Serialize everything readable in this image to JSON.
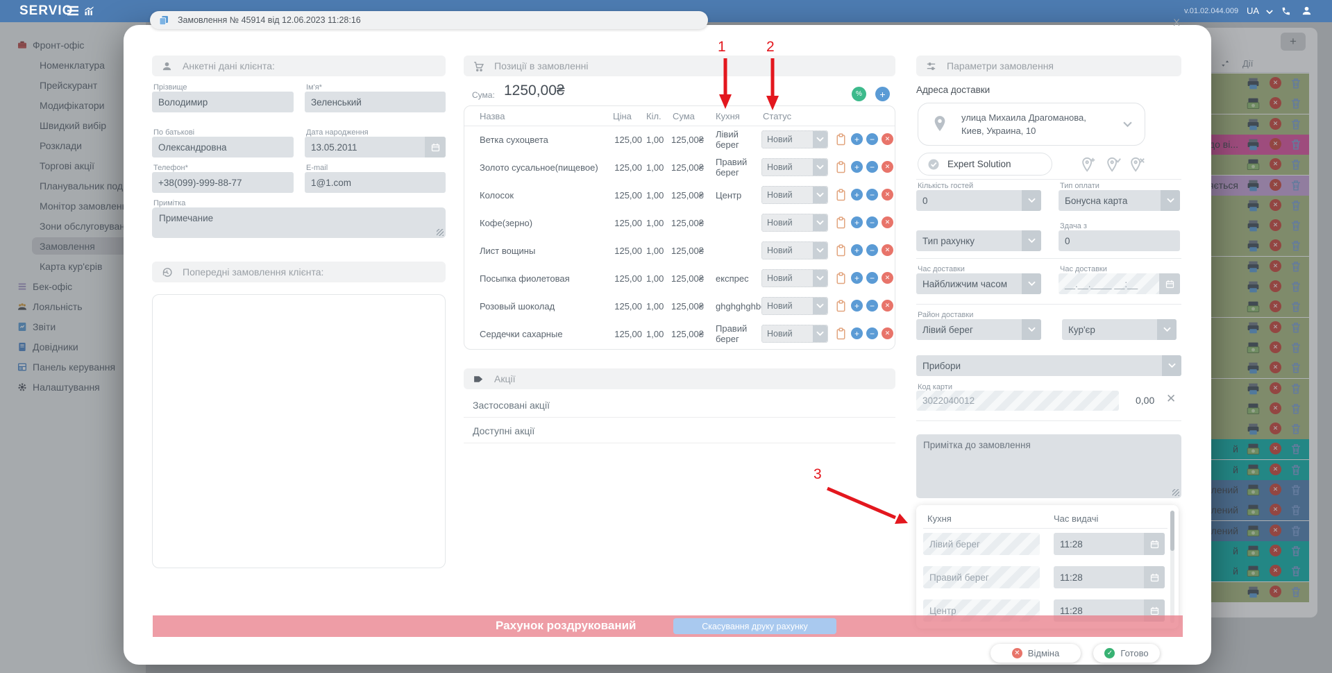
{
  "colors": {
    "topbar": "#4d7cb2",
    "accent-blue": "#5b9bd5",
    "accent-green": "#3dba8c",
    "accent-red": "#e8746a",
    "annotation-red": "#e3171e",
    "pink-banner": "rgba(232,119,132,0.72)",
    "row-green": "#a9ba7e",
    "row-pink": "#df4f9d",
    "row-purple": "#c9a2d8",
    "row-teal": "#0cb4ab",
    "row-blue": "#4f80b2"
  },
  "topbar": {
    "logo": "SERVIO",
    "version": "v.01.02.044.009",
    "lang": "UA"
  },
  "sidebar": {
    "items": [
      {
        "label": "Фронт-офіс",
        "icon": "briefcase-icon",
        "level": 0
      },
      {
        "label": "Номенклатура",
        "level": 1
      },
      {
        "label": "Прейскурант",
        "level": 1
      },
      {
        "label": "Модифікатори",
        "level": 1
      },
      {
        "label": "Швидкий вибір",
        "level": 1
      },
      {
        "label": "Розклади",
        "level": 1
      },
      {
        "label": "Торгові акції",
        "level": 1
      },
      {
        "label": "Планувальник подій",
        "level": 1
      },
      {
        "label": "Монітор замовлень",
        "level": 1
      },
      {
        "label": "Зони обслуговування",
        "level": 1
      },
      {
        "label": "Замовлення",
        "level": 1,
        "selected": true
      },
      {
        "label": "Карта кур'єрів",
        "level": 1
      },
      {
        "label": "Бек-офіс",
        "icon": "menu-lines-icon",
        "level": 0
      },
      {
        "label": "Лояльність",
        "icon": "people-icon",
        "level": 0
      },
      {
        "label": "Звіти",
        "icon": "report-icon",
        "level": 0
      },
      {
        "label": "Довідники",
        "icon": "book-icon",
        "level": 0
      },
      {
        "label": "Панель керування",
        "icon": "dashboard-icon",
        "level": 0
      },
      {
        "label": "Налаштування",
        "icon": "gear-icon",
        "level": 0
      }
    ]
  },
  "background_table": {
    "add_button": "+",
    "actions_header": "Дії",
    "rows": [
      {
        "color": "green",
        "icon": "printer-icon",
        "label": ""
      },
      {
        "color": "green",
        "icon": "money-icon",
        "label": ""
      },
      {
        "color": "green",
        "icon": "printer-icon",
        "label": ""
      },
      {
        "color": "pink",
        "icon": "printer-icon",
        "label": "й до ві..."
      },
      {
        "color": "green",
        "icon": "money-icon",
        "label": ""
      },
      {
        "color": "purple",
        "icon": "printer-icon",
        "label": "ляється"
      },
      {
        "color": "green",
        "icon": "printer-icon",
        "label": ""
      },
      {
        "color": "green",
        "icon": "printer-icon",
        "label": ""
      },
      {
        "color": "green",
        "icon": "printer-icon",
        "label": ""
      },
      {
        "color": "green",
        "icon": "printer-icon",
        "label": ""
      },
      {
        "color": "green",
        "icon": "printer-icon",
        "label": ""
      },
      {
        "color": "green",
        "icon": "money-icon",
        "label": ""
      },
      {
        "color": "green",
        "icon": "printer-icon",
        "label": ""
      },
      {
        "color": "green",
        "icon": "money-icon",
        "label": ""
      },
      {
        "color": "green",
        "icon": "printer-icon",
        "label": ""
      },
      {
        "color": "green",
        "icon": "printer-icon",
        "label": ""
      },
      {
        "color": "green",
        "icon": "money-icon",
        "label": ""
      },
      {
        "color": "green",
        "icon": "printer-icon",
        "label": ""
      },
      {
        "color": "teal",
        "icon": "money-icon",
        "label": "й"
      },
      {
        "color": "teal",
        "icon": "money-icon",
        "label": "й"
      },
      {
        "color": "blue",
        "icon": "money-icon",
        "label": "лений"
      },
      {
        "color": "blue",
        "icon": "money-icon",
        "label": "лений"
      },
      {
        "color": "blue",
        "icon": "money-icon",
        "label": "лений"
      },
      {
        "color": "teal",
        "icon": "money-icon",
        "label": "й"
      },
      {
        "color": "teal",
        "icon": "money-icon",
        "label": "й"
      },
      {
        "color": "green",
        "icon": "printer-icon",
        "label": ""
      }
    ]
  },
  "modal": {
    "title": "Замовлення № 45914 від 12.06.2023 11:28:16",
    "close_label": "X",
    "client": {
      "section_title": "Анкетні дані клієнта:",
      "fields": {
        "last_name": {
          "label": "Прізвище",
          "value": "Володимир"
        },
        "first_name": {
          "label": "Ім'я*",
          "value": "Зеленський"
        },
        "middle_name": {
          "label": "По батькові",
          "value": "Олександровна"
        },
        "birth_date": {
          "label": "Дата народження",
          "value": "13.05.2011"
        },
        "phone": {
          "label": "Телефон*",
          "value": "+38(099)-999-88-77"
        },
        "email": {
          "label": "E-mail",
          "value": "1@1.com"
        },
        "note": {
          "label": "Примітка",
          "value": "Примечание"
        }
      },
      "previous_orders_title": "Попередні замовлення клієнта:"
    },
    "items": {
      "section_title": "Позиції в замовленні",
      "sum_label": "Сума:",
      "sum_value": "1250,00₴",
      "discount_button": "%",
      "add_button": "+",
      "columns": [
        "Назва",
        "Ціна",
        "Кіл.",
        "Сума",
        "Кухня",
        "Статус"
      ],
      "rows": [
        {
          "name": "Ветка сухоцвета",
          "price": "125,00",
          "qty": "1,00",
          "sum": "125,00₴",
          "kitchen": "Лівий берег",
          "status": "Новий"
        },
        {
          "name": "Золото сусальное(пищевое)",
          "price": "125,00",
          "qty": "1,00",
          "sum": "125,00₴",
          "kitchen": "Правий берег",
          "status": "Новий"
        },
        {
          "name": "Колосок",
          "price": "125,00",
          "qty": "1,00",
          "sum": "125,00₴",
          "kitchen": "Центр",
          "status": "Новий"
        },
        {
          "name": "Кофе(зерно)",
          "price": "125,00",
          "qty": "1,00",
          "sum": "125,00₴",
          "kitchen": "",
          "status": "Новий"
        },
        {
          "name": "Лист вощины",
          "price": "125,00",
          "qty": "1,00",
          "sum": "125,00₴",
          "kitchen": "",
          "status": "Новий"
        },
        {
          "name": "Посыпка фиолетовая",
          "price": "125,00",
          "qty": "1,00",
          "sum": "125,00₴",
          "kitchen": "експрес",
          "status": "Новий"
        },
        {
          "name": "Розовый шоколад",
          "price": "125,00",
          "qty": "1,00",
          "sum": "125,00₴",
          "kitchen": "ghghghghbg",
          "status": "Новий"
        },
        {
          "name": "Сердечки сахарные",
          "price": "125,00",
          "qty": "1,00",
          "sum": "125,00₴",
          "kitchen": "Правий берег",
          "status": "Новий"
        }
      ]
    },
    "promos": {
      "section_title": "Акції",
      "applied": "Застосовані акції",
      "available": "Доступні акції"
    },
    "params": {
      "section_title": "Параметри замовлення",
      "address_label": "Адреса доставки",
      "address_line1": "улица Михаила Драгоманова,",
      "address_line2": "Киев, Украина, 10",
      "expert_button": "Expert Solution",
      "guests": {
        "label": "Кількість гостей",
        "value": "0"
      },
      "payment_type": {
        "label": "Тип оплати",
        "value": "Бонусна карта"
      },
      "account_type": {
        "value": "Тип рахунку"
      },
      "change_from": {
        "label": "Здача з",
        "value": "0"
      },
      "delivery_time_select": {
        "label": "Час доставки",
        "value": "Найближчим часом"
      },
      "delivery_time_input": {
        "label": "Час доставки",
        "placeholder": "__.__.____ __:__"
      },
      "district": {
        "label": "Район доставки",
        "value": "Лівий берег"
      },
      "courier": {
        "value": "Кур'єр"
      },
      "utensils": {
        "value": "Прибори"
      },
      "card_code": {
        "label": "Код карти",
        "value": "3022040012",
        "amount": "0,00"
      },
      "order_note_placeholder": "Примітка до замовлення"
    },
    "kitchen_schedule": {
      "col_kitchen": "Кухня",
      "col_time": "Час видачі",
      "rows": [
        {
          "kitchen": "Лівий берег",
          "time": "11:28"
        },
        {
          "kitchen": "Правий берег",
          "time": "11:28"
        },
        {
          "kitchen": "Центр",
          "time": "11:28"
        }
      ]
    },
    "footer": {
      "printed_banner": "Рахунок роздрукований",
      "cancel_print_button": "Скасування друку рахунку",
      "cancel_button": "Відміна",
      "done_button": "Готово"
    }
  },
  "annotations": {
    "n1": "1",
    "n2": "2",
    "n3": "3"
  }
}
